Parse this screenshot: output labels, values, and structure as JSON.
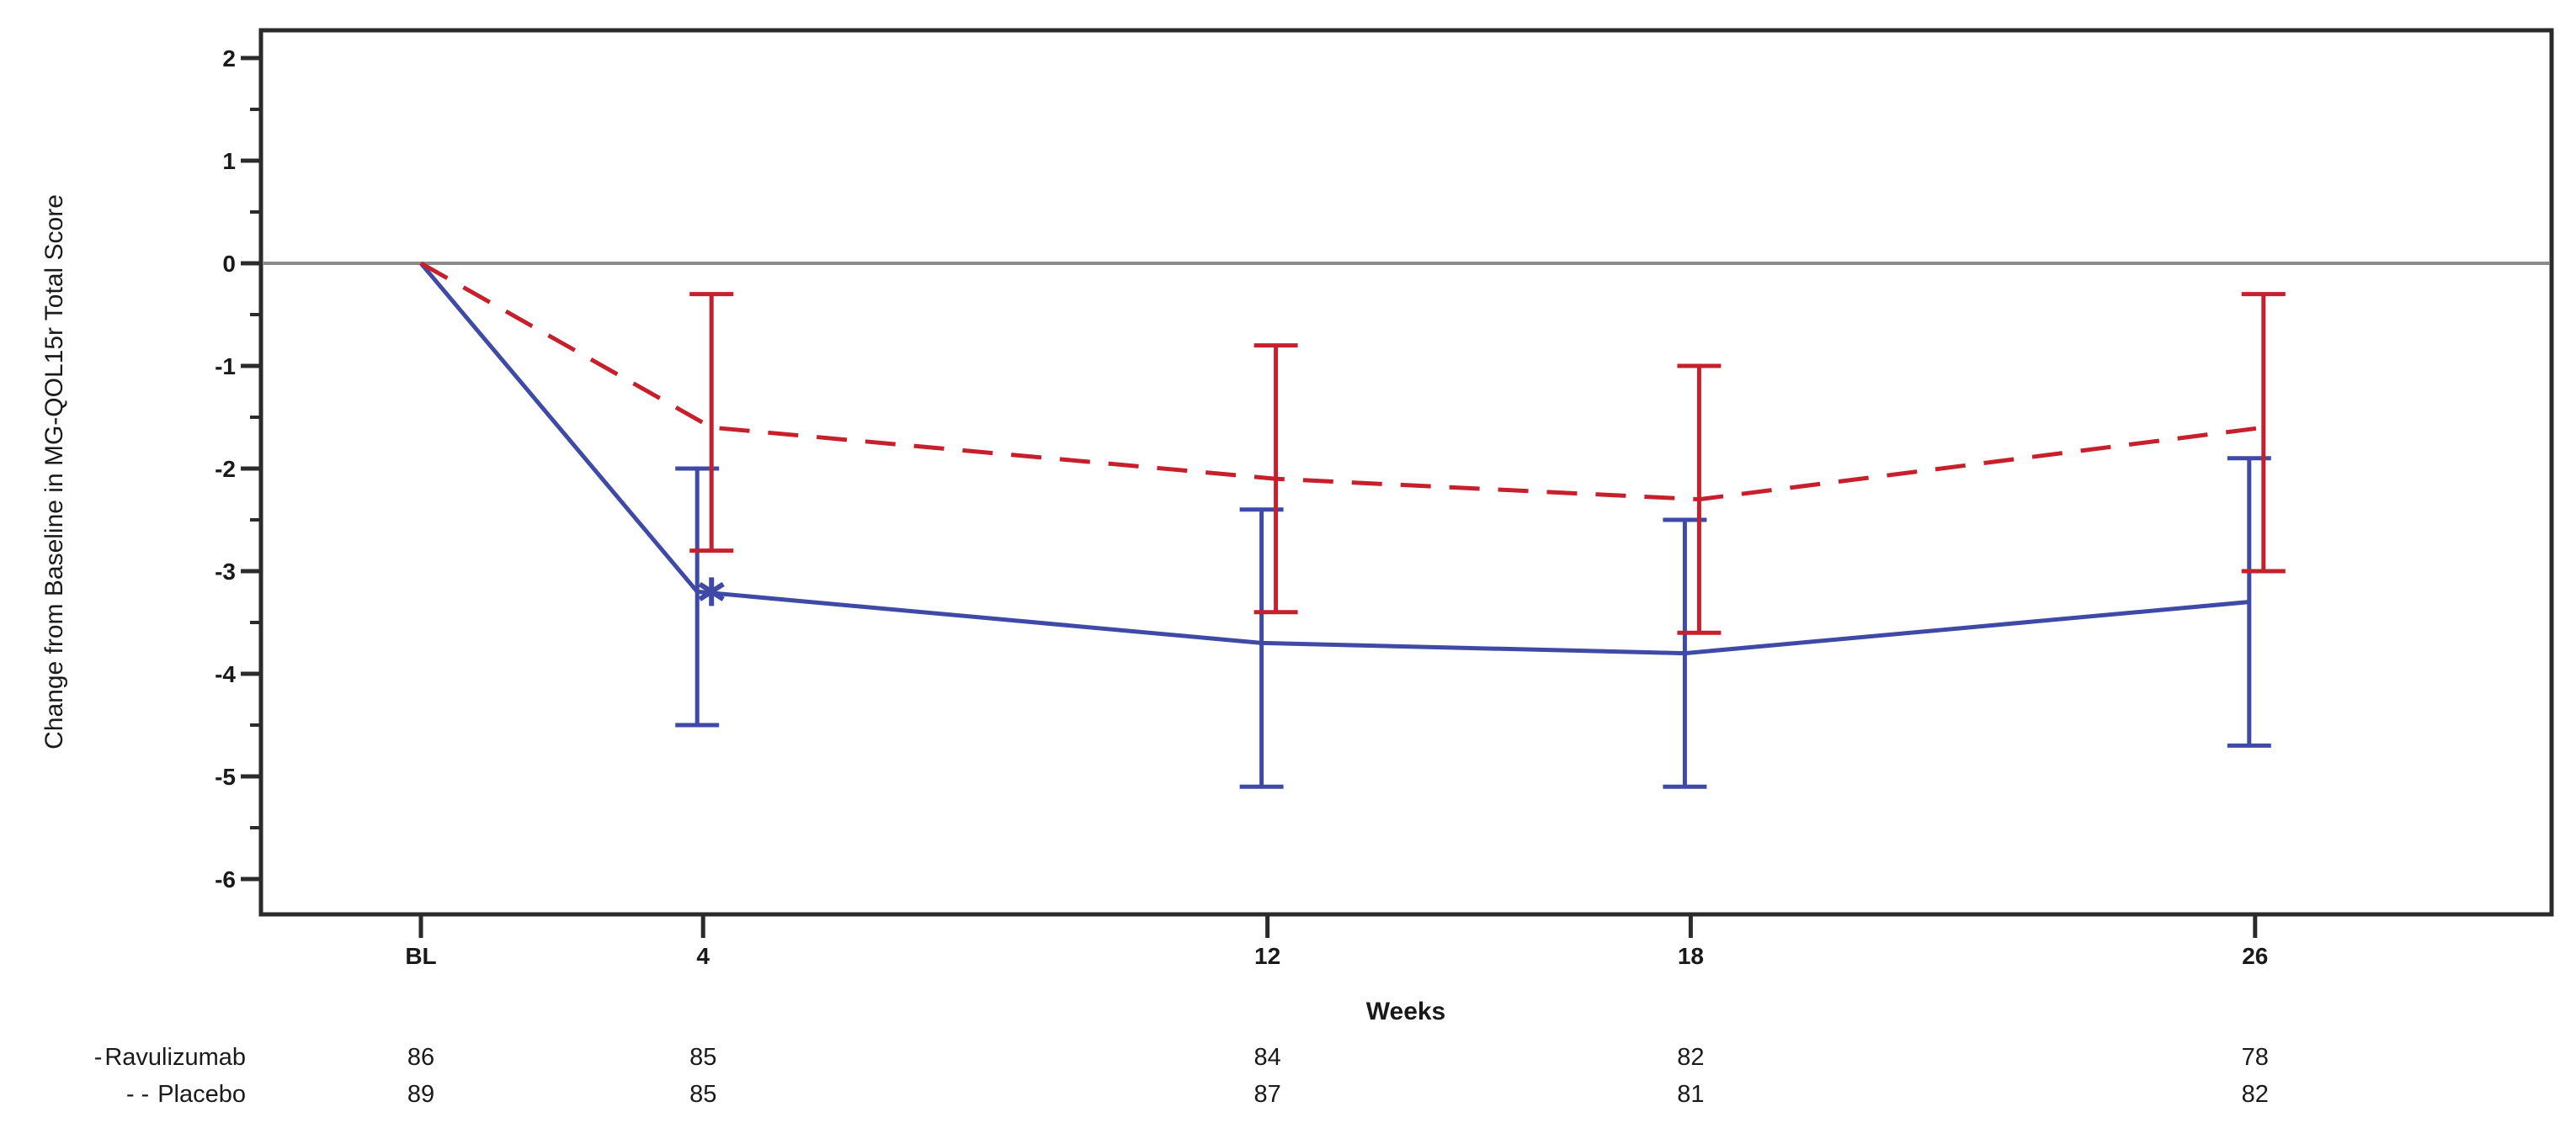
{
  "chart_data": {
    "type": "line",
    "title": "",
    "xlabel": "Weeks",
    "ylabel": "Change from Baseline in MG-QOL15r Total Score",
    "x_tick_labels": [
      "BL",
      "4",
      "12",
      "18",
      "26"
    ],
    "x_values_weeks": [
      0,
      4,
      12,
      18,
      26
    ],
    "y_tick_labels": [
      "2",
      "1",
      "0",
      "-1",
      "-2",
      "-3",
      "-4",
      "-5",
      "-6"
    ],
    "y_major_ticks": [
      2,
      1,
      0,
      -1,
      -2,
      -3,
      -4,
      -5,
      -6
    ],
    "y_minor_ticks": [
      1.5,
      0.5,
      -0.5,
      -1.5,
      -2.5,
      -3.5,
      -4.5,
      -5.5
    ],
    "ylim": [
      -6.35,
      2.27
    ],
    "zero_reference_line": 0,
    "grid": "off",
    "legend_position": "bottom-left",
    "series": [
      {
        "name": "Ravulizumab",
        "legend_marker": "-",
        "color": "#3E4AA5",
        "line_style": "solid",
        "values": [
          0,
          -3.2,
          -3.7,
          -3.8,
          -3.3
        ],
        "ci_lower": [
          null,
          -4.5,
          -5.1,
          -5.1,
          -4.7
        ],
        "ci_upper": [
          null,
          -2.0,
          -2.4,
          -2.5,
          -1.9
        ],
        "n_at_visit": [
          "86",
          "85",
          "84",
          "82",
          "78"
        ],
        "annotation": {
          "x_index": 1,
          "symbol": "*"
        }
      },
      {
        "name": "Placebo",
        "legend_marker": "- -",
        "color": "#C5202C",
        "line_style": "dashed",
        "values": [
          0,
          -1.6,
          -2.1,
          -2.3,
          -1.6
        ],
        "ci_lower": [
          null,
          -2.8,
          -3.4,
          -3.6,
          -3.0
        ],
        "ci_upper": [
          null,
          -0.3,
          -0.8,
          -1.0,
          -0.3
        ],
        "n_at_visit": [
          "89",
          "85",
          "87",
          "81",
          "82"
        ],
        "annotation": null
      }
    ],
    "colors": {
      "frame": "#2b2b2b",
      "zero_line": "#8a8a8a",
      "text": "#1a1a1a"
    }
  }
}
